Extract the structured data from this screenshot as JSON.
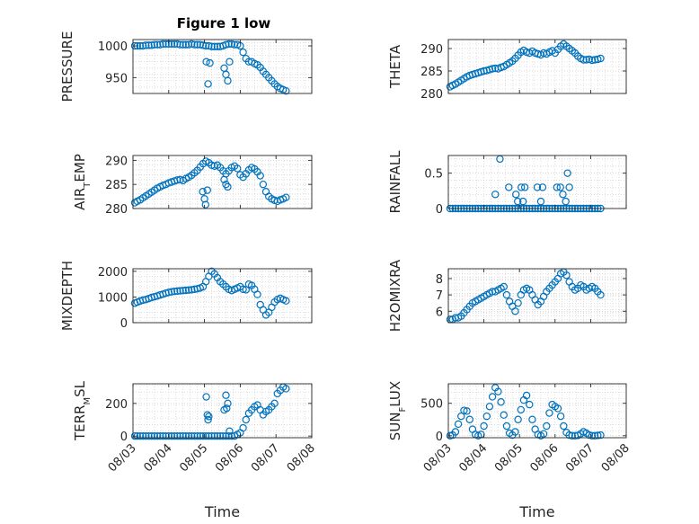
{
  "title": "Figure 1 low",
  "colors": {
    "marker": "#0072bd",
    "axis": "#262626",
    "grid": "#c8c8c8"
  },
  "chart_data": [
    {
      "type": "scatter",
      "marker": "o",
      "grid": true,
      "ylabel": "PRESSURE",
      "ylim": [
        925,
        1010
      ],
      "yticks": [
        "950",
        "1000"
      ],
      "ytick_values": [
        950,
        1000
      ],
      "xlim": [
        0,
        5
      ],
      "xticks": [
        "08/03",
        "08/04",
        "08/05",
        "08/06",
        "08/07",
        "08/08"
      ],
      "xlabel": "",
      "x": [
        0.05,
        0.12,
        0.2,
        0.28,
        0.36,
        0.44,
        0.52,
        0.6,
        0.68,
        0.76,
        0.84,
        0.92,
        1.0,
        1.08,
        1.16,
        1.24,
        1.32,
        1.4,
        1.48,
        1.56,
        1.64,
        1.72,
        1.8,
        1.88,
        1.96,
        2.04,
        2.12,
        2.2,
        2.28,
        2.36,
        2.44,
        2.52,
        2.6,
        2.68,
        2.76,
        2.84,
        2.92,
        3.0,
        3.08,
        3.16,
        3.24,
        3.32,
        3.4,
        3.48,
        3.56,
        3.64,
        3.72,
        3.8,
        3.88,
        3.96,
        4.04,
        4.12,
        4.2,
        4.28,
        2.05,
        2.1,
        2.15,
        2.55,
        2.6,
        2.65,
        2.7
      ],
      "y": [
        1000,
        1000,
        1000,
        1000,
        1001,
        1001,
        1001,
        1002,
        1002,
        1002,
        1003,
        1003,
        1003,
        1003,
        1003,
        1003,
        1002,
        1002,
        1002,
        1002,
        1003,
        1002,
        1002,
        1002,
        1001,
        1000,
        1000,
        999,
        999,
        999,
        999,
        1000,
        1002,
        1003,
        1003,
        1002,
        1002,
        1000,
        990,
        980,
        975,
        975,
        972,
        970,
        966,
        960,
        955,
        950,
        945,
        940,
        936,
        933,
        931,
        929,
        975,
        940,
        973,
        965,
        955,
        945,
        975
      ]
    },
    {
      "type": "scatter",
      "marker": "o",
      "grid": true,
      "ylabel": "THETA",
      "ylim": [
        280,
        292
      ],
      "yticks": [
        "280",
        "285",
        "290"
      ],
      "ytick_values": [
        280,
        285,
        290
      ],
      "xlim": [
        0,
        5
      ],
      "xticks": [
        "08/03",
        "08/04",
        "08/05",
        "08/06",
        "08/07",
        "08/08"
      ],
      "xlabel": "",
      "x": [
        0.05,
        0.12,
        0.2,
        0.28,
        0.36,
        0.44,
        0.52,
        0.6,
        0.68,
        0.76,
        0.84,
        0.92,
        1.0,
        1.08,
        1.16,
        1.24,
        1.32,
        1.4,
        1.48,
        1.56,
        1.64,
        1.72,
        1.8,
        1.88,
        1.96,
        2.04,
        2.12,
        2.2,
        2.28,
        2.36,
        2.44,
        2.52,
        2.6,
        2.68,
        2.76,
        2.84,
        2.92,
        3.0,
        3.08,
        3.16,
        3.24,
        3.32,
        3.4,
        3.48,
        3.56,
        3.64,
        3.72,
        3.8,
        3.88,
        3.96,
        4.04,
        4.12,
        4.2,
        4.28
      ],
      "y": [
        281.5,
        281.8,
        282.1,
        282.5,
        282.9,
        283.3,
        283.7,
        284.0,
        284.2,
        284.4,
        284.6,
        284.8,
        285.0,
        285.1,
        285.3,
        285.5,
        285.6,
        285.5,
        285.8,
        286.0,
        286.4,
        286.8,
        287.2,
        287.8,
        288.5,
        289.2,
        289.6,
        289.2,
        289.0,
        289.4,
        289.0,
        288.8,
        288.6,
        289.0,
        288.8,
        289.2,
        289.5,
        289.0,
        289.8,
        290.5,
        291.0,
        290.5,
        290.0,
        289.5,
        289.0,
        288.3,
        287.8,
        287.5,
        287.5,
        287.6,
        287.4,
        287.5,
        287.6,
        287.8
      ]
    },
    {
      "type": "scatter",
      "marker": "o",
      "grid": true,
      "ylabel": "AIR_TEMP",
      "ylabel_main": "AIR",
      "ylabel_sub": "T",
      "ylabel_tail": "EMP",
      "ylim": [
        280,
        291
      ],
      "yticks": [
        "280",
        "285",
        "290"
      ],
      "ytick_values": [
        280,
        285,
        290
      ],
      "xlim": [
        0,
        5
      ],
      "xticks": [
        "08/03",
        "08/04",
        "08/05",
        "08/06",
        "08/07",
        "08/08"
      ],
      "xlabel": "",
      "x": [
        0.05,
        0.12,
        0.2,
        0.28,
        0.36,
        0.44,
        0.52,
        0.6,
        0.68,
        0.76,
        0.84,
        0.92,
        1.0,
        1.08,
        1.16,
        1.24,
        1.32,
        1.4,
        1.48,
        1.56,
        1.64,
        1.72,
        1.8,
        1.88,
        1.96,
        2.04,
        2.12,
        2.2,
        2.28,
        2.36,
        2.44,
        2.52,
        2.6,
        2.68,
        2.76,
        2.84,
        2.92,
        3.0,
        3.08,
        3.16,
        3.24,
        3.32,
        3.4,
        3.48,
        3.56,
        3.64,
        3.72,
        3.8,
        3.88,
        3.96,
        4.04,
        4.12,
        4.2,
        4.28,
        1.95,
        2.0,
        2.03,
        2.08,
        2.55,
        2.6,
        2.65
      ],
      "y": [
        281.2,
        281.5,
        281.8,
        282.2,
        282.6,
        283.0,
        283.4,
        283.8,
        284.2,
        284.5,
        284.8,
        285.0,
        285.3,
        285.5,
        285.7,
        285.9,
        286.0,
        285.8,
        286.2,
        286.5,
        286.9,
        287.4,
        287.9,
        288.6,
        289.3,
        289.8,
        289.5,
        289.0,
        288.8,
        289.0,
        288.5,
        287.8,
        287.2,
        287.8,
        288.5,
        288.8,
        288.3,
        287.0,
        286.5,
        287.2,
        288.0,
        288.5,
        288.2,
        287.6,
        286.8,
        285.0,
        283.5,
        282.5,
        282.0,
        281.7,
        281.5,
        281.8,
        282.0,
        282.3,
        283.5,
        282.0,
        280.8,
        283.8,
        286.0,
        285.0,
        284.5
      ]
    },
    {
      "type": "scatter",
      "marker": "o",
      "grid": true,
      "ylabel": "RAINFALL",
      "ylim": [
        0,
        0.75
      ],
      "yticks": [
        "0",
        "0.5"
      ],
      "ytick_values": [
        0,
        0.5
      ],
      "xlim": [
        0,
        5
      ],
      "xticks": [
        "08/03",
        "08/04",
        "08/05",
        "08/06",
        "08/07",
        "08/08"
      ],
      "xlabel": "",
      "x": [
        0.05,
        0.12,
        0.2,
        0.28,
        0.36,
        0.44,
        0.52,
        0.6,
        0.68,
        0.76,
        0.84,
        0.92,
        1.0,
        1.08,
        1.16,
        1.24,
        1.32,
        1.4,
        1.48,
        1.56,
        1.64,
        1.72,
        1.8,
        1.88,
        1.96,
        2.04,
        2.12,
        2.2,
        2.28,
        2.36,
        2.44,
        2.52,
        2.6,
        2.68,
        2.76,
        2.84,
        2.92,
        3.0,
        3.08,
        3.16,
        3.24,
        3.32,
        3.4,
        3.48,
        3.56,
        3.64,
        3.72,
        3.8,
        3.88,
        3.96,
        4.04,
        4.12,
        4.2,
        4.28,
        1.32,
        1.45,
        1.7,
        1.9,
        1.95,
        2.05,
        2.1,
        2.15,
        2.5,
        2.6,
        2.65,
        3.05,
        3.15,
        3.22,
        3.3,
        3.35,
        3.4
      ],
      "y": [
        0,
        0,
        0,
        0,
        0,
        0,
        0,
        0,
        0,
        0,
        0,
        0,
        0,
        0,
        0,
        0,
        0,
        0,
        0,
        0,
        0,
        0,
        0,
        0,
        0,
        0,
        0,
        0,
        0,
        0,
        0,
        0,
        0,
        0,
        0,
        0,
        0,
        0,
        0,
        0,
        0,
        0,
        0,
        0,
        0,
        0,
        0,
        0,
        0,
        0,
        0,
        0,
        0,
        0,
        0.2,
        0.7,
        0.3,
        0.2,
        0.1,
        0.3,
        0.1,
        0.3,
        0.3,
        0.1,
        0.3,
        0.3,
        0.3,
        0.2,
        0.1,
        0.5,
        0.3
      ]
    },
    {
      "type": "scatter",
      "marker": "o",
      "grid": true,
      "ylabel": "MIXDEPTH",
      "ylim": [
        0,
        2100
      ],
      "yticks": [
        "0",
        "1000",
        "2000"
      ],
      "ytick_values": [
        0,
        1000,
        2000
      ],
      "xlim": [
        0,
        5
      ],
      "xticks": [
        "08/03",
        "08/04",
        "08/05",
        "08/06",
        "08/07",
        "08/08"
      ],
      "xlabel": "",
      "x": [
        0.05,
        0.12,
        0.2,
        0.28,
        0.36,
        0.44,
        0.52,
        0.6,
        0.68,
        0.76,
        0.84,
        0.92,
        1.0,
        1.08,
        1.16,
        1.24,
        1.32,
        1.4,
        1.48,
        1.56,
        1.64,
        1.72,
        1.8,
        1.88,
        1.96,
        2.04,
        2.12,
        2.2,
        2.28,
        2.36,
        2.44,
        2.52,
        2.6,
        2.68,
        2.76,
        2.84,
        2.92,
        3.0,
        3.08,
        3.16,
        3.24,
        3.32,
        3.4,
        3.48,
        3.56,
        3.64,
        3.72,
        3.8,
        3.88,
        3.96,
        4.04,
        4.12,
        4.2,
        4.28
      ],
      "y": [
        760,
        800,
        840,
        880,
        900,
        940,
        980,
        1010,
        1040,
        1080,
        1110,
        1150,
        1180,
        1200,
        1220,
        1230,
        1240,
        1250,
        1260,
        1270,
        1280,
        1300,
        1320,
        1350,
        1400,
        1600,
        1800,
        2000,
        1900,
        1750,
        1600,
        1500,
        1400,
        1300,
        1250,
        1300,
        1350,
        1400,
        1300,
        1280,
        1500,
        1450,
        1300,
        1100,
        700,
        500,
        300,
        400,
        600,
        800,
        900,
        950,
        900,
        850
      ]
    },
    {
      "type": "scatter",
      "marker": "o",
      "grid": true,
      "ylabel": "H2OMIXRA",
      "ylim": [
        5.3,
        8.6
      ],
      "yticks": [
        "6",
        "7",
        "8"
      ],
      "ytick_values": [
        6,
        7,
        8
      ],
      "xlim": [
        0,
        5
      ],
      "xticks": [
        "08/03",
        "08/04",
        "08/05",
        "08/06",
        "08/07",
        "08/08"
      ],
      "xlabel": "",
      "x": [
        0.05,
        0.12,
        0.2,
        0.28,
        0.36,
        0.44,
        0.52,
        0.6,
        0.68,
        0.76,
        0.84,
        0.92,
        1.0,
        1.08,
        1.16,
        1.24,
        1.32,
        1.4,
        1.48,
        1.56,
        1.64,
        1.72,
        1.8,
        1.88,
        1.96,
        2.04,
        2.12,
        2.2,
        2.28,
        2.36,
        2.44,
        2.52,
        2.6,
        2.68,
        2.76,
        2.84,
        2.92,
        3.0,
        3.08,
        3.16,
        3.24,
        3.32,
        3.4,
        3.48,
        3.56,
        3.64,
        3.72,
        3.8,
        3.88,
        3.96,
        4.04,
        4.12,
        4.2,
        4.28
      ],
      "y": [
        5.5,
        5.5,
        5.6,
        5.6,
        5.7,
        5.9,
        6.1,
        6.3,
        6.5,
        6.6,
        6.7,
        6.8,
        6.9,
        7.0,
        7.1,
        7.2,
        7.2,
        7.3,
        7.4,
        7.5,
        7.0,
        6.6,
        6.3,
        6.0,
        6.5,
        7.0,
        7.3,
        7.4,
        7.3,
        7.0,
        6.7,
        6.4,
        6.6,
        6.9,
        7.2,
        7.4,
        7.6,
        7.8,
        8.0,
        8.3,
        8.4,
        8.2,
        7.8,
        7.5,
        7.3,
        7.4,
        7.6,
        7.5,
        7.3,
        7.4,
        7.5,
        7.4,
        7.2,
        7.0
      ]
    },
    {
      "type": "scatter",
      "marker": "o",
      "grid": true,
      "ylabel": "TERR_MSL",
      "ylabel_main": "TERR",
      "ylabel_sub": "M",
      "ylabel_tail": "SL",
      "ylim": [
        -10,
        320
      ],
      "yticks": [
        "0",
        "200"
      ],
      "ytick_values": [
        0,
        200
      ],
      "xlim": [
        0,
        5
      ],
      "xticks": [
        "08/03",
        "08/04",
        "08/05",
        "08/06",
        "08/07",
        "08/08"
      ],
      "xlabel": "Time",
      "x": [
        0.05,
        0.12,
        0.2,
        0.28,
        0.36,
        0.44,
        0.52,
        0.6,
        0.68,
        0.76,
        0.84,
        0.92,
        1.0,
        1.08,
        1.16,
        1.24,
        1.32,
        1.4,
        1.48,
        1.56,
        1.64,
        1.72,
        1.8,
        1.88,
        1.96,
        2.04,
        2.12,
        2.2,
        2.28,
        2.36,
        2.44,
        2.52,
        2.6,
        2.68,
        2.76,
        2.84,
        2.92,
        3.0,
        3.08,
        3.16,
        3.24,
        3.32,
        3.4,
        3.48,
        3.56,
        3.64,
        3.72,
        3.8,
        3.88,
        3.96,
        4.04,
        4.12,
        4.2,
        4.28,
        2.05,
        2.08,
        2.1,
        2.12,
        2.55,
        2.6,
        2.62,
        2.65,
        2.7
      ],
      "y": [
        0,
        0,
        0,
        0,
        0,
        0,
        0,
        0,
        0,
        0,
        0,
        0,
        0,
        0,
        0,
        0,
        0,
        0,
        0,
        0,
        0,
        0,
        0,
        0,
        0,
        0,
        0,
        0,
        0,
        0,
        0,
        0,
        0,
        0,
        0,
        0,
        10,
        20,
        50,
        100,
        140,
        160,
        180,
        190,
        160,
        130,
        150,
        160,
        180,
        200,
        260,
        280,
        300,
        290,
        240,
        130,
        100,
        120,
        160,
        250,
        170,
        200,
        30
      ]
    },
    {
      "type": "scatter",
      "marker": "o",
      "grid": true,
      "ylabel": "SUN_FLUX",
      "ylabel_main": "SUN",
      "ylabel_sub": "F",
      "ylabel_tail": "LUX",
      "ylim": [
        -30,
        800
      ],
      "yticks": [
        "0",
        "500"
      ],
      "ytick_values": [
        0,
        500
      ],
      "xlim": [
        0,
        5
      ],
      "xticks": [
        "08/03",
        "08/04",
        "08/05",
        "08/06",
        "08/07",
        "08/08"
      ],
      "xlabel": "Time",
      "x": [
        0.05,
        0.12,
        0.2,
        0.28,
        0.36,
        0.44,
        0.52,
        0.6,
        0.68,
        0.76,
        0.84,
        0.92,
        1.0,
        1.08,
        1.16,
        1.24,
        1.32,
        1.4,
        1.48,
        1.56,
        1.64,
        1.72,
        1.8,
        1.88,
        1.96,
        2.04,
        2.12,
        2.2,
        2.28,
        2.36,
        2.44,
        2.52,
        2.6,
        2.68,
        2.76,
        2.84,
        2.92,
        3.0,
        3.08,
        3.16,
        3.24,
        3.32,
        3.4,
        3.48,
        3.56,
        3.64,
        3.72,
        3.8,
        3.88,
        3.96,
        4.04,
        4.12,
        4.2,
        4.28
      ],
      "y": [
        0,
        10,
        60,
        180,
        300,
        390,
        380,
        250,
        100,
        20,
        0,
        20,
        150,
        300,
        450,
        600,
        740,
        680,
        520,
        320,
        150,
        40,
        10,
        60,
        250,
        400,
        550,
        620,
        480,
        250,
        100,
        20,
        0,
        30,
        150,
        350,
        480,
        450,
        420,
        300,
        150,
        50,
        10,
        0,
        0,
        5,
        30,
        60,
        40,
        10,
        0,
        0,
        5,
        10
      ]
    }
  ]
}
